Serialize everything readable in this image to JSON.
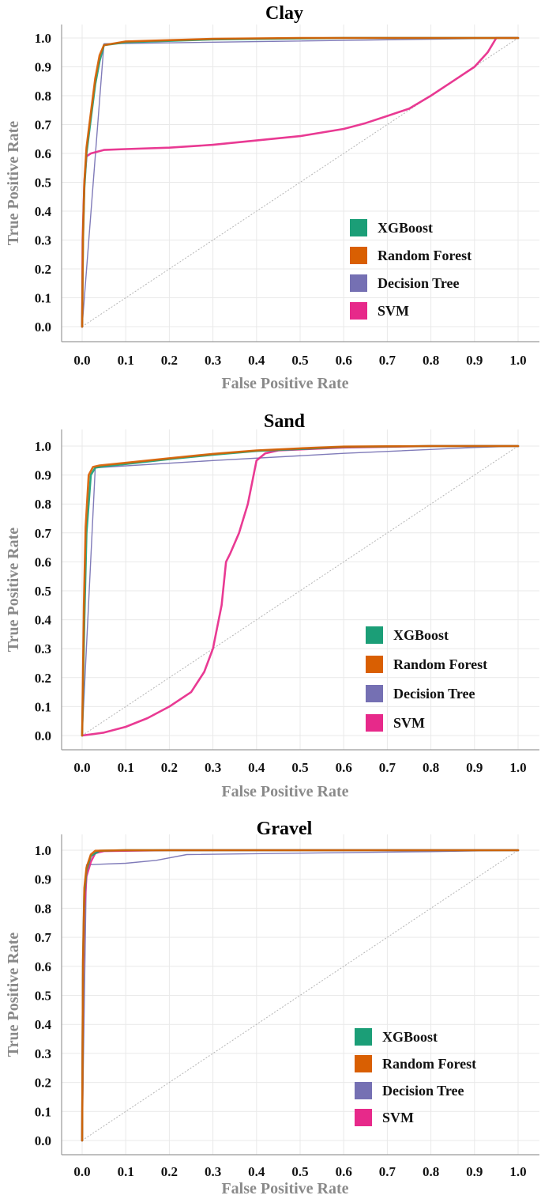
{
  "colors": {
    "XGBoost": "#1b9e77",
    "Random Forest": "#d95f02",
    "Decision Tree": "#7570b3",
    "SVM": "#e7298a"
  },
  "chart_data": [
    {
      "type": "line",
      "title": "Clay",
      "xlabel": "False Positive Rate",
      "ylabel": "True Positive Rate",
      "xlim": [
        0,
        1
      ],
      "ylim": [
        0,
        1
      ],
      "x_tick_labels": [
        "0.0",
        "0.1",
        "0.2",
        "0.3",
        "0.4",
        "0.5",
        "0.6",
        "0.7",
        "0.8",
        "0.9",
        "1.0"
      ],
      "y_tick_labels": [
        "0.0",
        "0.1",
        "0.2",
        "0.3",
        "0.4",
        "0.5",
        "0.6",
        "0.7",
        "0.8",
        "0.9",
        "1.0"
      ],
      "legend_position": "bottom-right",
      "grid": true,
      "diagonal": true,
      "series": [
        {
          "name": "XGBoost",
          "x": [
            0,
            0.002,
            0.005,
            0.01,
            0.02,
            0.03,
            0.04,
            0.05,
            0.1,
            0.3,
            0.6,
            0.8,
            1.0
          ],
          "y": [
            0,
            0.3,
            0.48,
            0.6,
            0.72,
            0.84,
            0.92,
            0.975,
            0.985,
            0.995,
            1.0,
            1.0,
            1.0
          ]
        },
        {
          "name": "Random Forest",
          "x": [
            0,
            0.002,
            0.005,
            0.01,
            0.02,
            0.03,
            0.04,
            0.05,
            0.1,
            0.3,
            0.5,
            0.8,
            1.0
          ],
          "y": [
            0,
            0.32,
            0.5,
            0.62,
            0.74,
            0.86,
            0.94,
            0.975,
            0.988,
            0.997,
            1.0,
            1.0,
            1.0
          ]
        },
        {
          "name": "Decision Tree",
          "x": [
            0,
            0.05,
            1.0
          ],
          "y": [
            0,
            0.98,
            1.0
          ]
        },
        {
          "name": "SVM",
          "x": [
            0,
            0.001,
            0.005,
            0.01,
            0.02,
            0.05,
            0.1,
            0.2,
            0.3,
            0.4,
            0.5,
            0.6,
            0.65,
            0.7,
            0.75,
            0.8,
            0.85,
            0.9,
            0.93,
            0.95,
            1.0
          ],
          "y": [
            0,
            0.3,
            0.5,
            0.59,
            0.6,
            0.612,
            0.615,
            0.62,
            0.63,
            0.645,
            0.66,
            0.685,
            0.705,
            0.73,
            0.755,
            0.8,
            0.85,
            0.9,
            0.95,
            1.0,
            1.0
          ]
        }
      ]
    },
    {
      "type": "line",
      "title": "Sand",
      "xlabel": "False Positive Rate",
      "ylabel": "True Positive Rate",
      "xlim": [
        0,
        1
      ],
      "ylim": [
        0,
        1
      ],
      "x_tick_labels": [
        "0.0",
        "0.1",
        "0.2",
        "0.3",
        "0.4",
        "0.5",
        "0.6",
        "0.7",
        "0.8",
        "0.9",
        "1.0"
      ],
      "y_tick_labels": [
        "0.0",
        "0.1",
        "0.2",
        "0.3",
        "0.4",
        "0.5",
        "0.6",
        "0.7",
        "0.8",
        "0.9",
        "1.0"
      ],
      "legend_position": "bottom-right",
      "grid": true,
      "diagonal": true,
      "series": [
        {
          "name": "XGBoost",
          "x": [
            0,
            0.005,
            0.01,
            0.02,
            0.03,
            0.05,
            0.1,
            0.2,
            0.3,
            0.4,
            0.5,
            0.6,
            0.8,
            1.0
          ],
          "y": [
            0,
            0.4,
            0.7,
            0.9,
            0.925,
            0.93,
            0.938,
            0.955,
            0.97,
            0.983,
            0.99,
            0.997,
            1.0,
            1.0
          ]
        },
        {
          "name": "Random Forest",
          "x": [
            0,
            0.004,
            0.008,
            0.015,
            0.025,
            0.04,
            0.1,
            0.2,
            0.3,
            0.4,
            0.5,
            0.6,
            0.8,
            1.0
          ],
          "y": [
            0,
            0.45,
            0.72,
            0.9,
            0.928,
            0.933,
            0.942,
            0.958,
            0.973,
            0.985,
            0.992,
            0.998,
            1.0,
            1.0
          ]
        },
        {
          "name": "Decision Tree",
          "x": [
            0,
            0.03,
            0.3,
            0.6,
            0.9,
            1.0
          ],
          "y": [
            0,
            0.925,
            0.95,
            0.975,
            0.995,
            1.0
          ]
        },
        {
          "name": "SVM",
          "x": [
            0,
            0.05,
            0.1,
            0.15,
            0.2,
            0.25,
            0.28,
            0.3,
            0.32,
            0.33,
            0.34,
            0.36,
            0.38,
            0.4,
            0.42,
            0.45,
            0.6,
            0.8,
            1.0
          ],
          "y": [
            0,
            0.01,
            0.03,
            0.06,
            0.1,
            0.15,
            0.22,
            0.3,
            0.45,
            0.6,
            0.63,
            0.7,
            0.8,
            0.95,
            0.975,
            0.985,
            0.995,
            1.0,
            1.0
          ]
        }
      ]
    },
    {
      "type": "line",
      "title": "Gravel",
      "xlabel": "False Positive Rate",
      "ylabel": "True Positive Rate",
      "xlim": [
        0,
        1
      ],
      "ylim": [
        0,
        1
      ],
      "x_tick_labels": [
        "0.0",
        "0.1",
        "0.2",
        "0.3",
        "0.4",
        "0.5",
        "0.6",
        "0.7",
        "0.8",
        "0.9",
        "1.0"
      ],
      "y_tick_labels": [
        "0.0",
        "0.1",
        "0.2",
        "0.3",
        "0.4",
        "0.5",
        "0.6",
        "0.7",
        "0.8",
        "0.9",
        "1.0"
      ],
      "legend_position": "bottom-right",
      "grid": true,
      "diagonal": true,
      "series": [
        {
          "name": "XGBoost",
          "x": [
            0,
            0.002,
            0.005,
            0.01,
            0.02,
            0.04,
            0.1,
            0.3,
            0.6,
            1.0
          ],
          "y": [
            0,
            0.6,
            0.85,
            0.93,
            0.98,
            0.998,
            1.0,
            1.0,
            1.0,
            1.0
          ]
        },
        {
          "name": "Random Forest",
          "x": [
            0,
            0.002,
            0.005,
            0.01,
            0.02,
            0.03,
            0.1,
            0.4,
            1.0
          ],
          "y": [
            0,
            0.62,
            0.87,
            0.94,
            0.985,
            0.998,
            1.0,
            1.0,
            1.0
          ]
        },
        {
          "name": "Decision Tree",
          "x": [
            0,
            0.01,
            0.1,
            0.17,
            0.24,
            0.5,
            0.8,
            1.0
          ],
          "y": [
            0,
            0.95,
            0.955,
            0.965,
            0.985,
            0.99,
            0.995,
            1.0
          ]
        },
        {
          "name": "SVM",
          "x": [
            0,
            0.002,
            0.005,
            0.01,
            0.02,
            0.03,
            0.05,
            0.2,
            0.6,
            1.0
          ],
          "y": [
            0,
            0.55,
            0.8,
            0.91,
            0.96,
            0.99,
            0.997,
            1.0,
            1.0,
            1.0
          ]
        }
      ]
    }
  ]
}
